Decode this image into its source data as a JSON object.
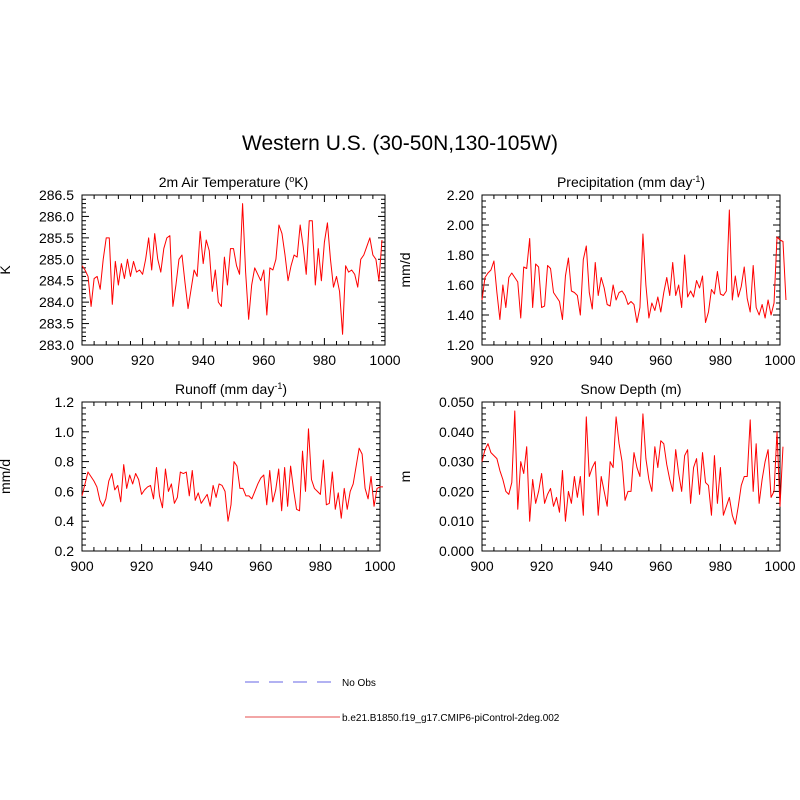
{
  "title": "Western U.S. (30-50N,130-105W)",
  "legend": {
    "items": [
      {
        "label": "No Obs",
        "color": "#9999ee",
        "style": "dashed"
      },
      {
        "label": "b.e21.B1850.f19_g17.CMIP6-piControl-2deg.002",
        "color": "#ee8888",
        "style": "solid"
      }
    ]
  },
  "chart_data": [
    {
      "type": "line",
      "title": "2m Air Temperature (",
      "title_sup": "o",
      "title_post": "K)",
      "ylabel": "K",
      "xlim": [
        900,
        1000
      ],
      "ylim": [
        283.0,
        286.5
      ],
      "xticks": [
        900,
        920,
        940,
        960,
        980,
        1000
      ],
      "yticks": [
        "283.0",
        "283.5",
        "284.0",
        "284.5",
        "285.0",
        "285.5",
        "286.0",
        "286.5"
      ],
      "line_color": "#ff0000",
      "x_start": 900,
      "values": [
        284.85,
        284.75,
        284.6,
        283.9,
        284.55,
        284.6,
        284.3,
        285.0,
        285.5,
        285.5,
        283.95,
        284.95,
        284.4,
        284.9,
        284.55,
        285.0,
        284.6,
        284.95,
        284.7,
        284.75,
        284.65,
        285.0,
        285.5,
        284.75,
        285.6,
        285.0,
        284.7,
        285.25,
        285.5,
        285.55,
        283.9,
        284.4,
        285.0,
        285.1,
        284.45,
        283.85,
        284.3,
        284.75,
        284.6,
        285.65,
        284.9,
        285.45,
        285.2,
        284.25,
        284.75,
        284.0,
        283.9,
        285.05,
        284.4,
        285.25,
        285.25,
        284.85,
        284.65,
        286.3,
        284.7,
        283.6,
        284.4,
        284.8,
        284.65,
        284.5,
        284.75,
        283.7,
        284.8,
        284.75,
        285.0,
        285.8,
        285.6,
        285.1,
        284.5,
        284.85,
        285.1,
        285.05,
        285.8,
        285.3,
        284.65,
        285.9,
        285.9,
        284.4,
        285.25,
        284.5,
        285.4,
        285.85,
        285.0,
        284.35,
        284.6,
        284.25,
        283.25,
        284.85,
        284.7,
        284.75,
        284.65,
        284.35,
        285.0,
        285.1,
        285.3,
        285.5,
        285.1,
        285.0,
        284.5,
        285.45
      ]
    },
    {
      "type": "line",
      "title": "Precipitation (mm day",
      "title_sup": "-1",
      "title_post": ")",
      "ylabel": "mm/d",
      "xlim": [
        900,
        1000
      ],
      "ylim": [
        1.2,
        2.2
      ],
      "xticks": [
        900,
        920,
        940,
        960,
        980,
        1000
      ],
      "yticks": [
        "1.20",
        "1.40",
        "1.60",
        "1.80",
        "2.00",
        "2.20"
      ],
      "line_color": "#ff0000",
      "x_start": 900,
      "values": [
        1.5,
        1.65,
        1.68,
        1.7,
        1.76,
        1.55,
        1.37,
        1.6,
        1.45,
        1.65,
        1.68,
        1.65,
        1.62,
        1.38,
        1.72,
        1.71,
        1.91,
        1.45,
        1.74,
        1.72,
        1.45,
        1.46,
        1.73,
        1.71,
        1.55,
        1.52,
        1.49,
        1.37,
        1.66,
        1.78,
        1.56,
        1.55,
        1.53,
        1.4,
        1.77,
        1.86,
        1.55,
        1.44,
        1.75,
        1.53,
        1.65,
        1.58,
        1.47,
        1.46,
        1.6,
        1.5,
        1.55,
        1.56,
        1.53,
        1.47,
        1.49,
        1.47,
        1.35,
        1.45,
        1.94,
        1.6,
        1.38,
        1.48,
        1.43,
        1.52,
        1.42,
        1.55,
        1.65,
        1.53,
        1.75,
        1.53,
        1.6,
        1.45,
        1.8,
        1.52,
        1.56,
        1.52,
        1.63,
        1.58,
        1.66,
        1.35,
        1.42,
        1.57,
        1.54,
        1.69,
        1.54,
        1.53,
        1.56,
        2.1,
        1.5,
        1.66,
        1.52,
        1.59,
        1.72,
        1.51,
        1.42,
        1.73,
        1.45,
        1.4,
        1.47,
        1.38,
        1.5,
        1.4,
        1.48,
        1.92,
        1.9,
        1.89,
        1.5
      ]
    },
    {
      "type": "line",
      "title": "Runoff (mm day",
      "title_sup": "-1",
      "title_post": ")",
      "ylabel": "mm/d",
      "xlim": [
        900,
        1000
      ],
      "ylim": [
        0.2,
        1.2
      ],
      "xticks": [
        900,
        920,
        940,
        960,
        980,
        1000
      ],
      "yticks": [
        "0.2",
        "0.4",
        "0.6",
        "0.8",
        "1.0",
        "1.2"
      ],
      "line_color": "#ff0000",
      "x_start": 900,
      "values": [
        0.57,
        0.65,
        0.73,
        0.7,
        0.67,
        0.63,
        0.54,
        0.5,
        0.55,
        0.67,
        0.72,
        0.61,
        0.64,
        0.53,
        0.78,
        0.62,
        0.71,
        0.65,
        0.72,
        0.68,
        0.58,
        0.61,
        0.63,
        0.64,
        0.55,
        0.76,
        0.57,
        0.49,
        0.75,
        0.6,
        0.65,
        0.52,
        0.56,
        0.73,
        0.72,
        0.73,
        0.57,
        0.74,
        0.54,
        0.59,
        0.52,
        0.55,
        0.58,
        0.5,
        0.64,
        0.56,
        0.65,
        0.64,
        0.6,
        0.4,
        0.51,
        0.8,
        0.77,
        0.62,
        0.62,
        0.57,
        0.57,
        0.55,
        0.6,
        0.65,
        0.69,
        0.71,
        0.51,
        0.74,
        0.53,
        0.61,
        0.75,
        0.47,
        0.76,
        0.5,
        0.77,
        0.61,
        0.48,
        0.47,
        0.87,
        0.6,
        1.02,
        0.68,
        0.62,
        0.6,
        0.58,
        0.81,
        0.51,
        0.52,
        0.73,
        0.48,
        0.59,
        0.42,
        0.62,
        0.48,
        0.6,
        0.65,
        0.77,
        0.89,
        0.85,
        0.62,
        0.55,
        0.7,
        0.5,
        0.62,
        0.63,
        0.63
      ]
    },
    {
      "type": "line",
      "title": "Snow Depth (m)",
      "title_sup": "",
      "title_post": "",
      "ylabel": "m",
      "xlim": [
        900,
        1000
      ],
      "ylim": [
        0.0,
        0.05
      ],
      "xticks": [
        900,
        920,
        940,
        960,
        980,
        1000
      ],
      "yticks": [
        "0.000",
        "0.010",
        "0.020",
        "0.030",
        "0.040",
        "0.050"
      ],
      "line_color": "#ff0000",
      "x_start": 900,
      "values": [
        0.03,
        0.034,
        0.036,
        0.033,
        0.032,
        0.031,
        0.027,
        0.024,
        0.02,
        0.019,
        0.023,
        0.047,
        0.014,
        0.03,
        0.026,
        0.035,
        0.01,
        0.024,
        0.016,
        0.02,
        0.026,
        0.016,
        0.019,
        0.021,
        0.015,
        0.018,
        0.013,
        0.027,
        0.01,
        0.02,
        0.016,
        0.025,
        0.018,
        0.025,
        0.012,
        0.045,
        0.025,
        0.028,
        0.03,
        0.012,
        0.025,
        0.02,
        0.015,
        0.03,
        0.028,
        0.045,
        0.036,
        0.03,
        0.017,
        0.02,
        0.02,
        0.033,
        0.028,
        0.025,
        0.046,
        0.031,
        0.024,
        0.02,
        0.035,
        0.028,
        0.037,
        0.036,
        0.029,
        0.024,
        0.02,
        0.034,
        0.026,
        0.02,
        0.032,
        0.034,
        0.016,
        0.028,
        0.031,
        0.019,
        0.033,
        0.023,
        0.022,
        0.012,
        0.032,
        0.016,
        0.028,
        0.012,
        0.015,
        0.018,
        0.012,
        0.009,
        0.015,
        0.022,
        0.025,
        0.025,
        0.044,
        0.02,
        0.036,
        0.016,
        0.024,
        0.03,
        0.034,
        0.018,
        0.02,
        0.04,
        0.015,
        0.035
      ]
    }
  ]
}
